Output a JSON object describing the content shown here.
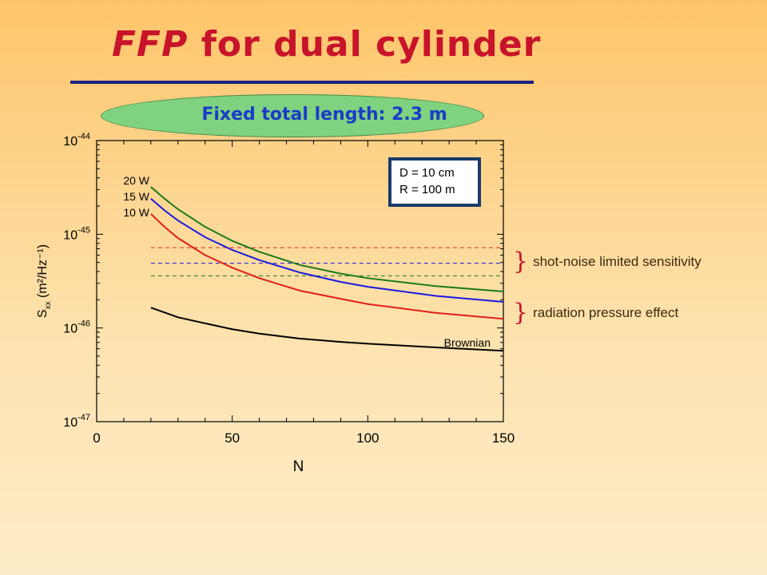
{
  "slide": {
    "title_em": "FFP",
    "title_rest": " for dual cylinder",
    "subtitle": "Fixed total length: 2.3 m",
    "annotations": {
      "shot_noise": "shot-noise limited sensitivity",
      "radiation": "radiation pressure effect"
    }
  },
  "chart_data": {
    "type": "line",
    "xlabel": "N",
    "ylabel_main": "S",
    "ylabel_sub": "xx",
    "ylabel_units": "(m²/Hz⁻¹)",
    "xlim": [
      0,
      150
    ],
    "ylim": [
      1e-47,
      1e-44
    ],
    "yscale": "log",
    "xticks": [
      0,
      50,
      100,
      150
    ],
    "yticks": [
      {
        "base": "10",
        "exp": "-47"
      },
      {
        "base": "10",
        "exp": "-46"
      },
      {
        "base": "10",
        "exp": "-45"
      },
      {
        "base": "10",
        "exp": "-44"
      }
    ],
    "info_box": [
      "D = 10 cm",
      "R = 100 m"
    ],
    "series": [
      {
        "name": "20 W",
        "color": "#1a7a1a",
        "x": [
          20,
          25,
          30,
          40,
          50,
          60,
          75,
          90,
          100,
          125,
          150
        ],
        "y": [
          3.2e-45,
          2.4e-45,
          1.85e-45,
          1.2e-45,
          8.5e-46,
          6.5e-46,
          4.7e-46,
          3.8e-46,
          3.4e-46,
          2.8e-46,
          2.45e-46
        ]
      },
      {
        "name": "15 W",
        "color": "#1a1ae0",
        "x": [
          20,
          25,
          30,
          40,
          50,
          60,
          75,
          90,
          100,
          125,
          150
        ],
        "y": [
          2.4e-45,
          1.8e-45,
          1.4e-45,
          9.3e-46,
          6.8e-46,
          5.3e-46,
          3.9e-46,
          3.1e-46,
          2.75e-46,
          2.2e-46,
          1.9e-46
        ]
      },
      {
        "name": "10 W",
        "color": "#e0201a",
        "x": [
          20,
          25,
          30,
          40,
          50,
          60,
          75,
          90,
          100,
          125,
          150
        ],
        "y": [
          1.65e-45,
          1.2e-45,
          9.1e-46,
          6e-46,
          4.4e-46,
          3.4e-46,
          2.5e-46,
          2.05e-46,
          1.8e-46,
          1.45e-46,
          1.25e-46
        ]
      },
      {
        "name": "Brownian",
        "color": "#000000",
        "x": [
          20,
          30,
          40,
          50,
          60,
          75,
          90,
          100,
          125,
          150
        ],
        "y": [
          1.65e-46,
          1.3e-46,
          1.12e-46,
          9.7e-47,
          8.7e-47,
          7.7e-47,
          7.1e-47,
          6.8e-47,
          6.2e-47,
          5.7e-47
        ]
      }
    ],
    "reference_lines": [
      {
        "color": "#e0201a",
        "y": 7.2e-46,
        "x": [
          20,
          150
        ]
      },
      {
        "color": "#1a1ae0",
        "y": 4.9e-46,
        "x": [
          20,
          150
        ]
      },
      {
        "color": "#1a7a1a",
        "y": 3.6e-46,
        "x": [
          20,
          150
        ]
      }
    ]
  }
}
